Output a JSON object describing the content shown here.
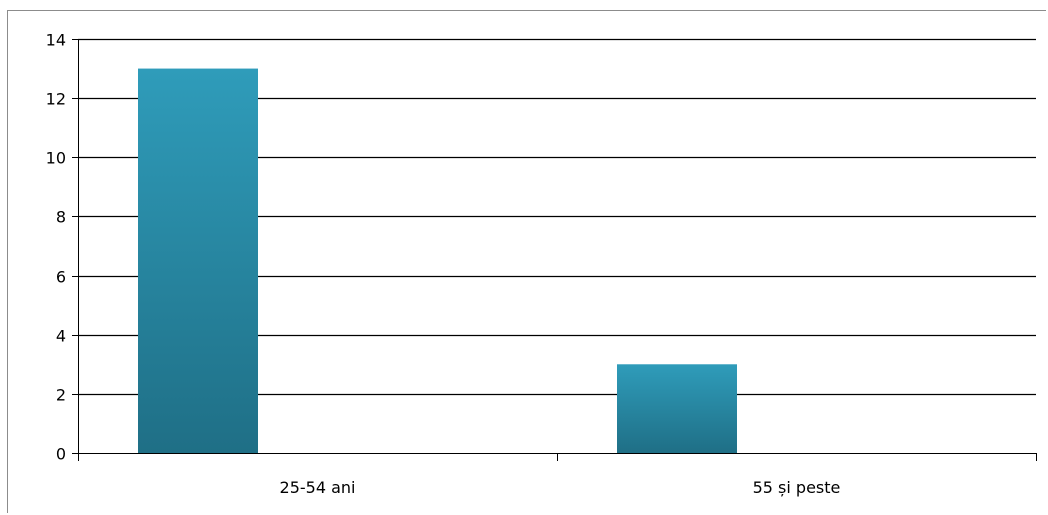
{
  "chart_data": {
    "type": "bar",
    "categories": [
      "25-54 ani",
      "55 și peste"
    ],
    "values": [
      13,
      3
    ],
    "ylim": [
      0,
      14
    ],
    "yticks": [
      0,
      2,
      4,
      6,
      8,
      10,
      12,
      14
    ],
    "grid": true,
    "legend": "none",
    "bar_color_top": "#2f9cba",
    "bar_color_bottom": "#1f6f86"
  }
}
